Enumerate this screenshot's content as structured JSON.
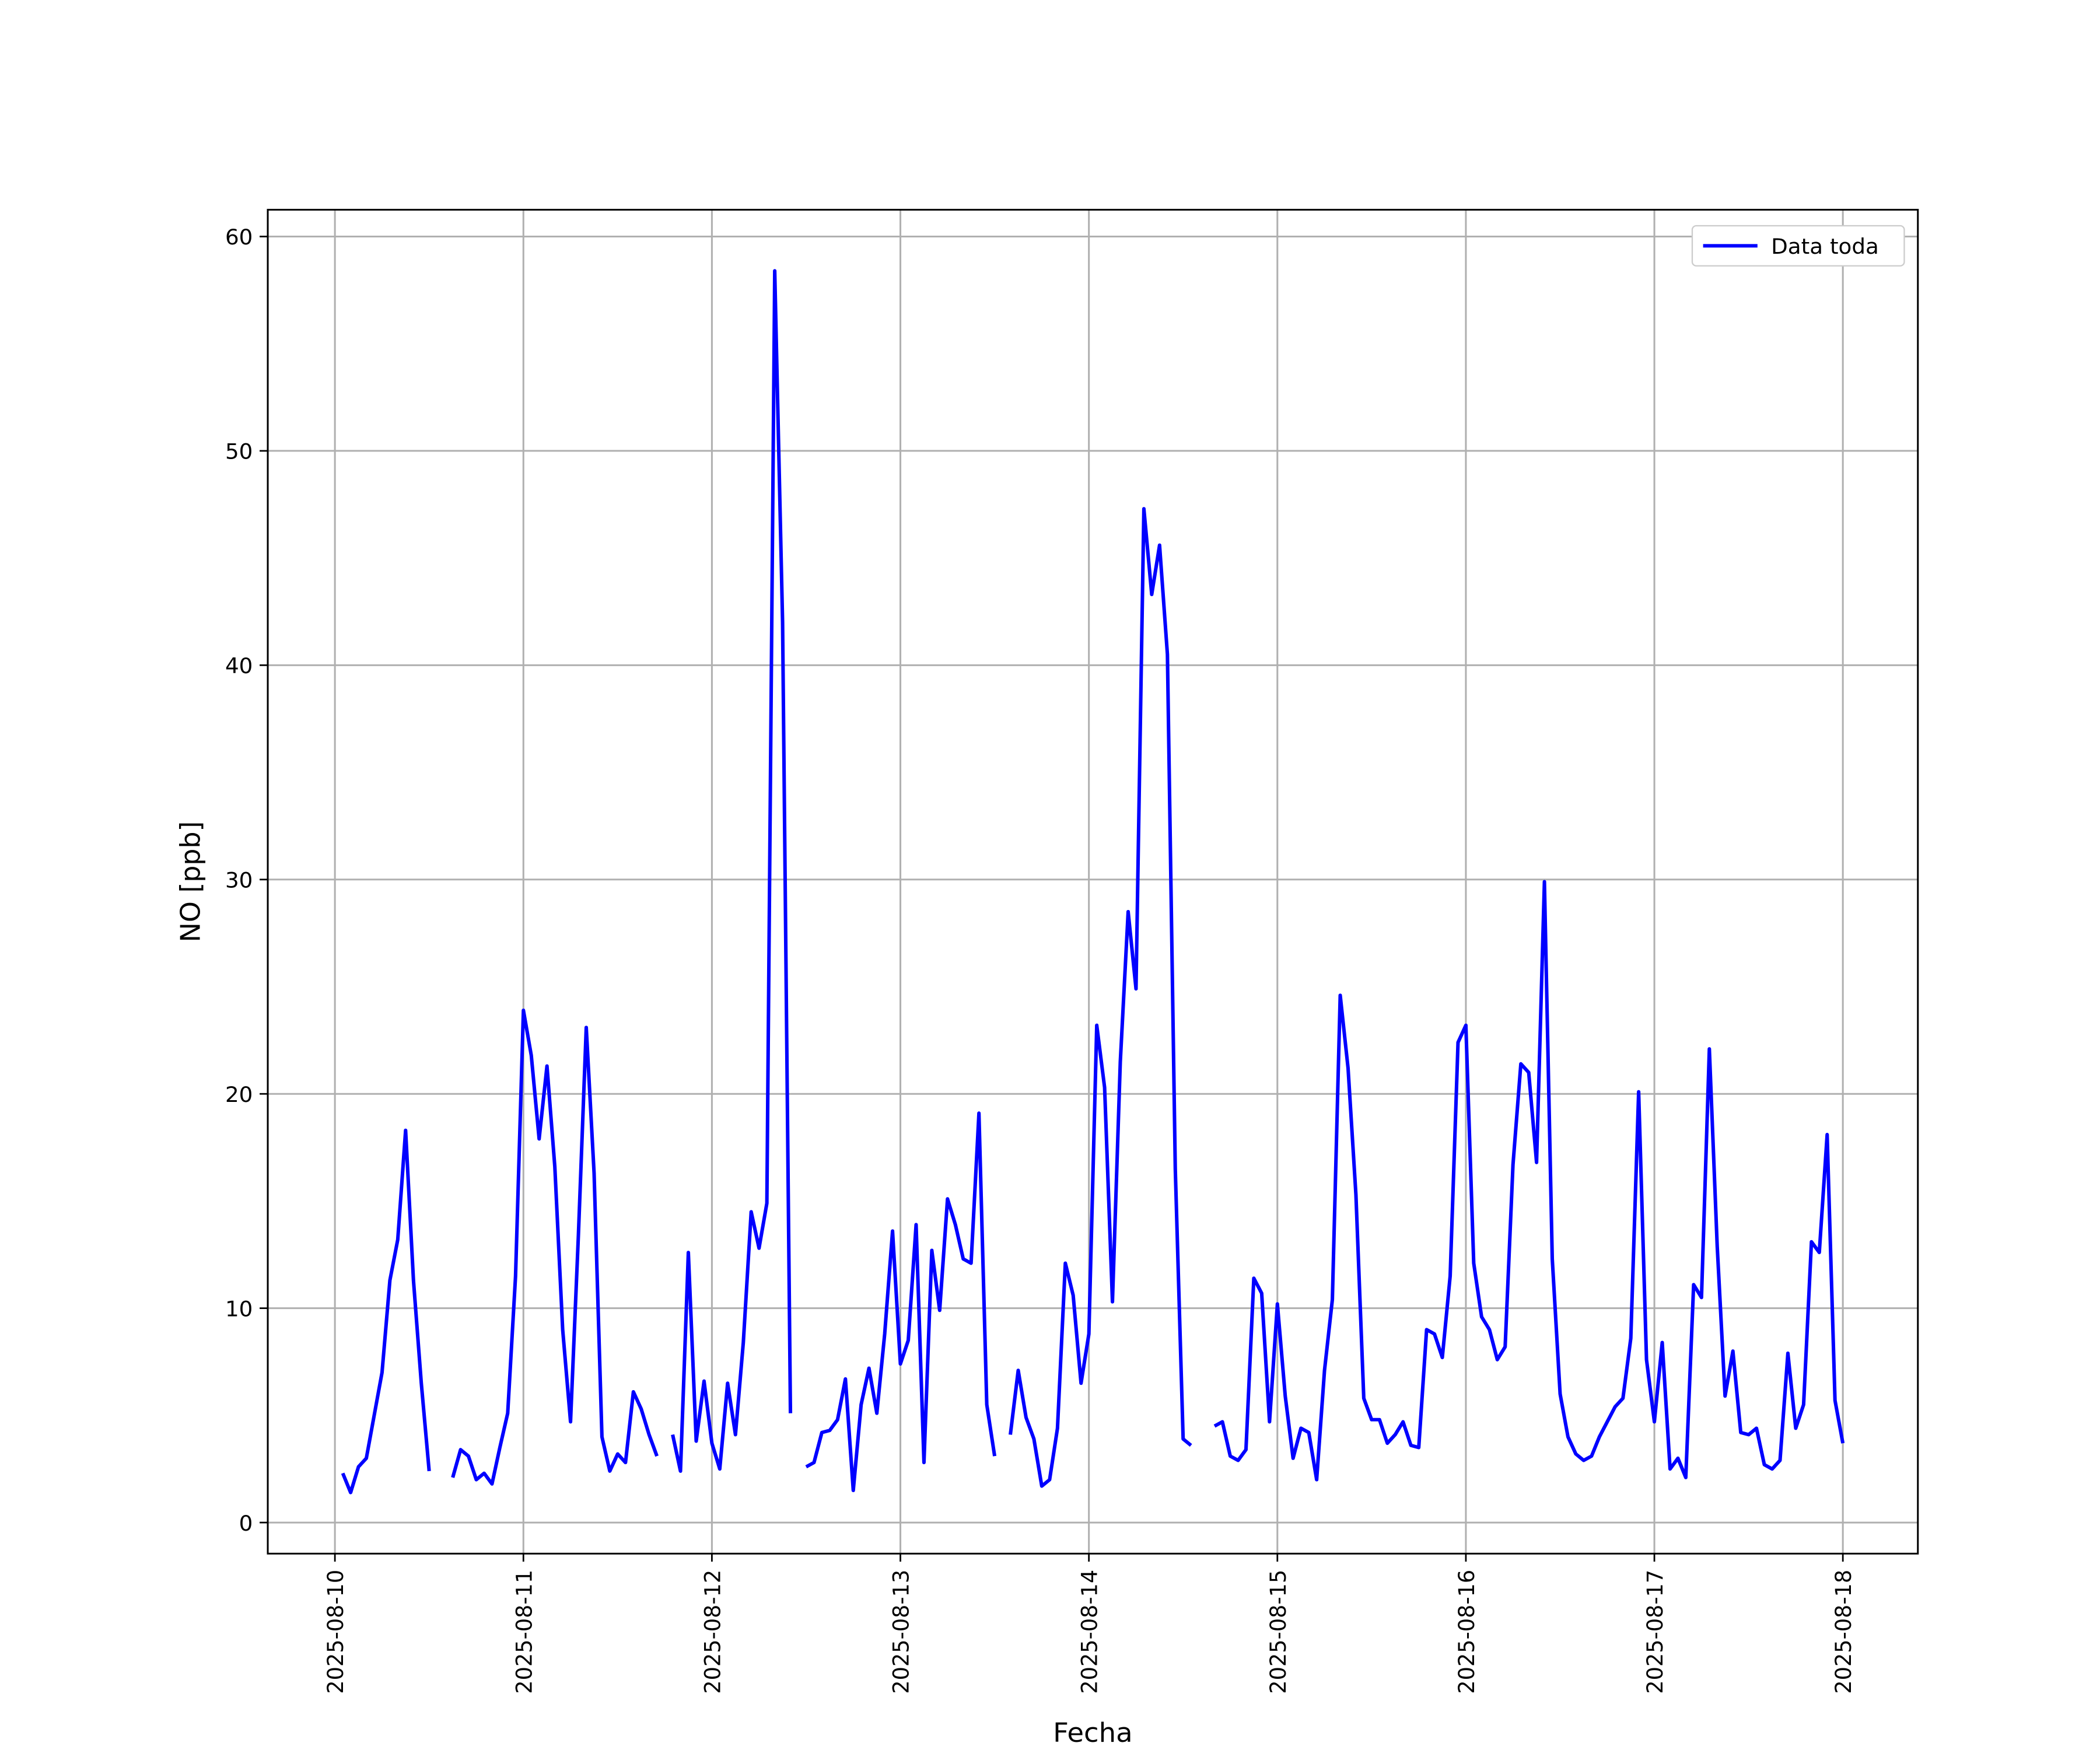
{
  "chart_data": {
    "type": "line",
    "xlabel": "Fecha",
    "ylabel": "NO [ppb]",
    "x": [
      "2025-08-10 01:00",
      "2025-08-10 02:00",
      "2025-08-10 03:00",
      "2025-08-10 04:00",
      "2025-08-10 05:00",
      "2025-08-10 06:00",
      "2025-08-10 07:00",
      "2025-08-10 08:00",
      "2025-08-10 09:00",
      "2025-08-10 10:00",
      "2025-08-10 11:00",
      "2025-08-10 12:00",
      "2025-08-10 13:00",
      "2025-08-10 14:00",
      "2025-08-10 15:00",
      "2025-08-10 16:00",
      "2025-08-10 17:00",
      "2025-08-10 18:00",
      "2025-08-10 19:00",
      "2025-08-10 20:00",
      "2025-08-10 21:00",
      "2025-08-10 22:00",
      "2025-08-10 23:00",
      "2025-08-11 00:00",
      "2025-08-11 01:00",
      "2025-08-11 02:00",
      "2025-08-11 03:00",
      "2025-08-11 04:00",
      "2025-08-11 05:00",
      "2025-08-11 06:00",
      "2025-08-11 07:00",
      "2025-08-11 08:00",
      "2025-08-11 09:00",
      "2025-08-11 10:00",
      "2025-08-11 11:00",
      "2025-08-11 12:00",
      "2025-08-11 13:00",
      "2025-08-11 14:00",
      "2025-08-11 15:00",
      "2025-08-11 16:00",
      "2025-08-11 17:00",
      "2025-08-11 18:00",
      "2025-08-11 19:00",
      "2025-08-11 20:00",
      "2025-08-11 21:00",
      "2025-08-11 22:00",
      "2025-08-11 23:00",
      "2025-08-12 00:00",
      "2025-08-12 01:00",
      "2025-08-12 02:00",
      "2025-08-12 03:00",
      "2025-08-12 04:00",
      "2025-08-12 05:00",
      "2025-08-12 06:00",
      "2025-08-12 07:00",
      "2025-08-12 08:00",
      "2025-08-12 09:00",
      "2025-08-12 10:00",
      "2025-08-12 11:00",
      "2025-08-12 12:00",
      "2025-08-12 13:00",
      "2025-08-12 14:00",
      "2025-08-12 15:00",
      "2025-08-12 16:00",
      "2025-08-12 17:00",
      "2025-08-12 18:00",
      "2025-08-12 19:00",
      "2025-08-12 20:00",
      "2025-08-12 21:00",
      "2025-08-12 22:00",
      "2025-08-12 23:00",
      "2025-08-13 00:00",
      "2025-08-13 01:00",
      "2025-08-13 02:00",
      "2025-08-13 03:00",
      "2025-08-13 04:00",
      "2025-08-13 05:00",
      "2025-08-13 06:00",
      "2025-08-13 07:00",
      "2025-08-13 08:00",
      "2025-08-13 09:00",
      "2025-08-13 10:00",
      "2025-08-13 11:00",
      "2025-08-13 12:00",
      "2025-08-13 13:00",
      "2025-08-13 14:00",
      "2025-08-13 15:00",
      "2025-08-13 16:00",
      "2025-08-13 17:00",
      "2025-08-13 18:00",
      "2025-08-13 19:00",
      "2025-08-13 20:00",
      "2025-08-13 21:00",
      "2025-08-13 22:00",
      "2025-08-13 23:00",
      "2025-08-14 00:00",
      "2025-08-14 01:00",
      "2025-08-14 02:00",
      "2025-08-14 03:00",
      "2025-08-14 04:00",
      "2025-08-14 05:00",
      "2025-08-14 06:00",
      "2025-08-14 07:00",
      "2025-08-14 08:00",
      "2025-08-14 09:00",
      "2025-08-14 10:00",
      "2025-08-14 11:00",
      "2025-08-14 12:00",
      "2025-08-14 13:00",
      "2025-08-14 14:00",
      "2025-08-14 15:00",
      "2025-08-14 16:00",
      "2025-08-14 17:00",
      "2025-08-14 18:00",
      "2025-08-14 19:00",
      "2025-08-14 20:00",
      "2025-08-14 21:00",
      "2025-08-14 22:00",
      "2025-08-14 23:00",
      "2025-08-15 00:00",
      "2025-08-15 01:00",
      "2025-08-15 02:00",
      "2025-08-15 03:00",
      "2025-08-15 04:00",
      "2025-08-15 05:00",
      "2025-08-15 06:00",
      "2025-08-15 07:00",
      "2025-08-15 08:00",
      "2025-08-15 09:00",
      "2025-08-15 10:00",
      "2025-08-15 11:00",
      "2025-08-15 12:00",
      "2025-08-15 13:00",
      "2025-08-15 14:00",
      "2025-08-15 15:00",
      "2025-08-15 16:00",
      "2025-08-15 17:00",
      "2025-08-15 18:00",
      "2025-08-15 19:00",
      "2025-08-15 20:00",
      "2025-08-15 21:00",
      "2025-08-15 22:00",
      "2025-08-15 23:00",
      "2025-08-16 00:00",
      "2025-08-16 01:00",
      "2025-08-16 02:00",
      "2025-08-16 03:00",
      "2025-08-16 04:00",
      "2025-08-16 05:00",
      "2025-08-16 06:00",
      "2025-08-16 07:00",
      "2025-08-16 08:00",
      "2025-08-16 09:00",
      "2025-08-16 10:00",
      "2025-08-16 11:00",
      "2025-08-16 12:00",
      "2025-08-16 13:00",
      "2025-08-16 14:00",
      "2025-08-16 15:00",
      "2025-08-16 16:00",
      "2025-08-16 17:00",
      "2025-08-16 18:00",
      "2025-08-16 19:00",
      "2025-08-16 20:00",
      "2025-08-16 21:00",
      "2025-08-16 22:00",
      "2025-08-16 23:00",
      "2025-08-17 00:00",
      "2025-08-17 01:00",
      "2025-08-17 02:00",
      "2025-08-17 03:00",
      "2025-08-17 04:00",
      "2025-08-17 05:00",
      "2025-08-17 06:00",
      "2025-08-17 07:00",
      "2025-08-17 08:00",
      "2025-08-17 09:00",
      "2025-08-17 10:00",
      "2025-08-17 11:00",
      "2025-08-17 12:00",
      "2025-08-17 13:00",
      "2025-08-17 14:00",
      "2025-08-17 15:00",
      "2025-08-17 16:00",
      "2025-08-17 17:00",
      "2025-08-17 18:00",
      "2025-08-17 19:00",
      "2025-08-17 20:00",
      "2025-08-17 21:00",
      "2025-08-17 22:00",
      "2025-08-17 23:00",
      "2025-08-18 00:00"
    ],
    "series": [
      {
        "name": "Data toda",
        "color": "#0000ff",
        "values": [
          2.3,
          1.4,
          2.6,
          3.0,
          5.0,
          7.0,
          11.3,
          13.2,
          18.3,
          11.3,
          6.5,
          2.4,
          null,
          null,
          2.1,
          3.4,
          3.1,
          2.0,
          2.3,
          1.8,
          3.5,
          5.1,
          11.5,
          23.9,
          21.8,
          17.9,
          21.3,
          16.6,
          9.0,
          4.7,
          13.4,
          23.1,
          16.3,
          4.0,
          2.4,
          3.2,
          2.8,
          6.1,
          5.3,
          4.1,
          3.1,
          null,
          4.1,
          2.4,
          12.6,
          3.8,
          6.6,
          3.7,
          2.5,
          6.5,
          4.1,
          8.4,
          14.5,
          12.8,
          14.9,
          58.4,
          42.0,
          5.1,
          null,
          2.6,
          2.8,
          4.2,
          4.3,
          4.8,
          6.7,
          1.5,
          5.5,
          7.2,
          5.1,
          8.8,
          13.6,
          7.4,
          8.5,
          13.9,
          2.8,
          12.7,
          9.9,
          15.1,
          13.9,
          12.3,
          12.1,
          19.1,
          5.5,
          3.1,
          null,
          4.1,
          7.1,
          4.9,
          3.9,
          1.7,
          2.0,
          4.4,
          12.1,
          10.6,
          6.5,
          8.8,
          23.2,
          20.3,
          10.3,
          21.5,
          28.5,
          24.9,
          47.3,
          43.3,
          45.6,
          40.5,
          16.5,
          3.9,
          3.6,
          null,
          null,
          4.5,
          4.7,
          3.1,
          2.9,
          3.4,
          11.4,
          10.7,
          4.7,
          10.2,
          5.9,
          3.0,
          4.4,
          4.2,
          2.0,
          7.1,
          10.4,
          24.6,
          21.2,
          15.3,
          5.8,
          4.8,
          4.8,
          3.7,
          4.1,
          4.7,
          3.6,
          3.5,
          9.0,
          8.8,
          7.7,
          11.5,
          22.4,
          23.2,
          12.1,
          9.6,
          9.0,
          7.6,
          8.2,
          16.7,
          21.4,
          21.0,
          16.8,
          29.9,
          12.3,
          6.0,
          4.0,
          3.2,
          2.9,
          3.1,
          4.0,
          4.7,
          5.4,
          5.8,
          8.6,
          20.1,
          7.6,
          4.7,
          8.4,
          2.5,
          3.0,
          2.1,
          11.1,
          10.5,
          22.1,
          12.9,
          5.9,
          8.0,
          4.2,
          4.1,
          4.4,
          2.7,
          2.5,
          2.9,
          7.9,
          4.4,
          5.5,
          13.1,
          12.6,
          18.1,
          5.7,
          3.7
        ]
      }
    ],
    "xlim": [
      "2025-08-09 15:27",
      "2025-08-18 09:33"
    ],
    "xticks": [
      "2025-08-10",
      "2025-08-11",
      "2025-08-12",
      "2025-08-13",
      "2025-08-14",
      "2025-08-15",
      "2025-08-16",
      "2025-08-17",
      "2025-08-18"
    ],
    "ylim": [
      -1.45,
      61.25
    ],
    "yticks": [
      0,
      10,
      20,
      30,
      40,
      50,
      60
    ],
    "grid": true,
    "legend": "upper right"
  }
}
